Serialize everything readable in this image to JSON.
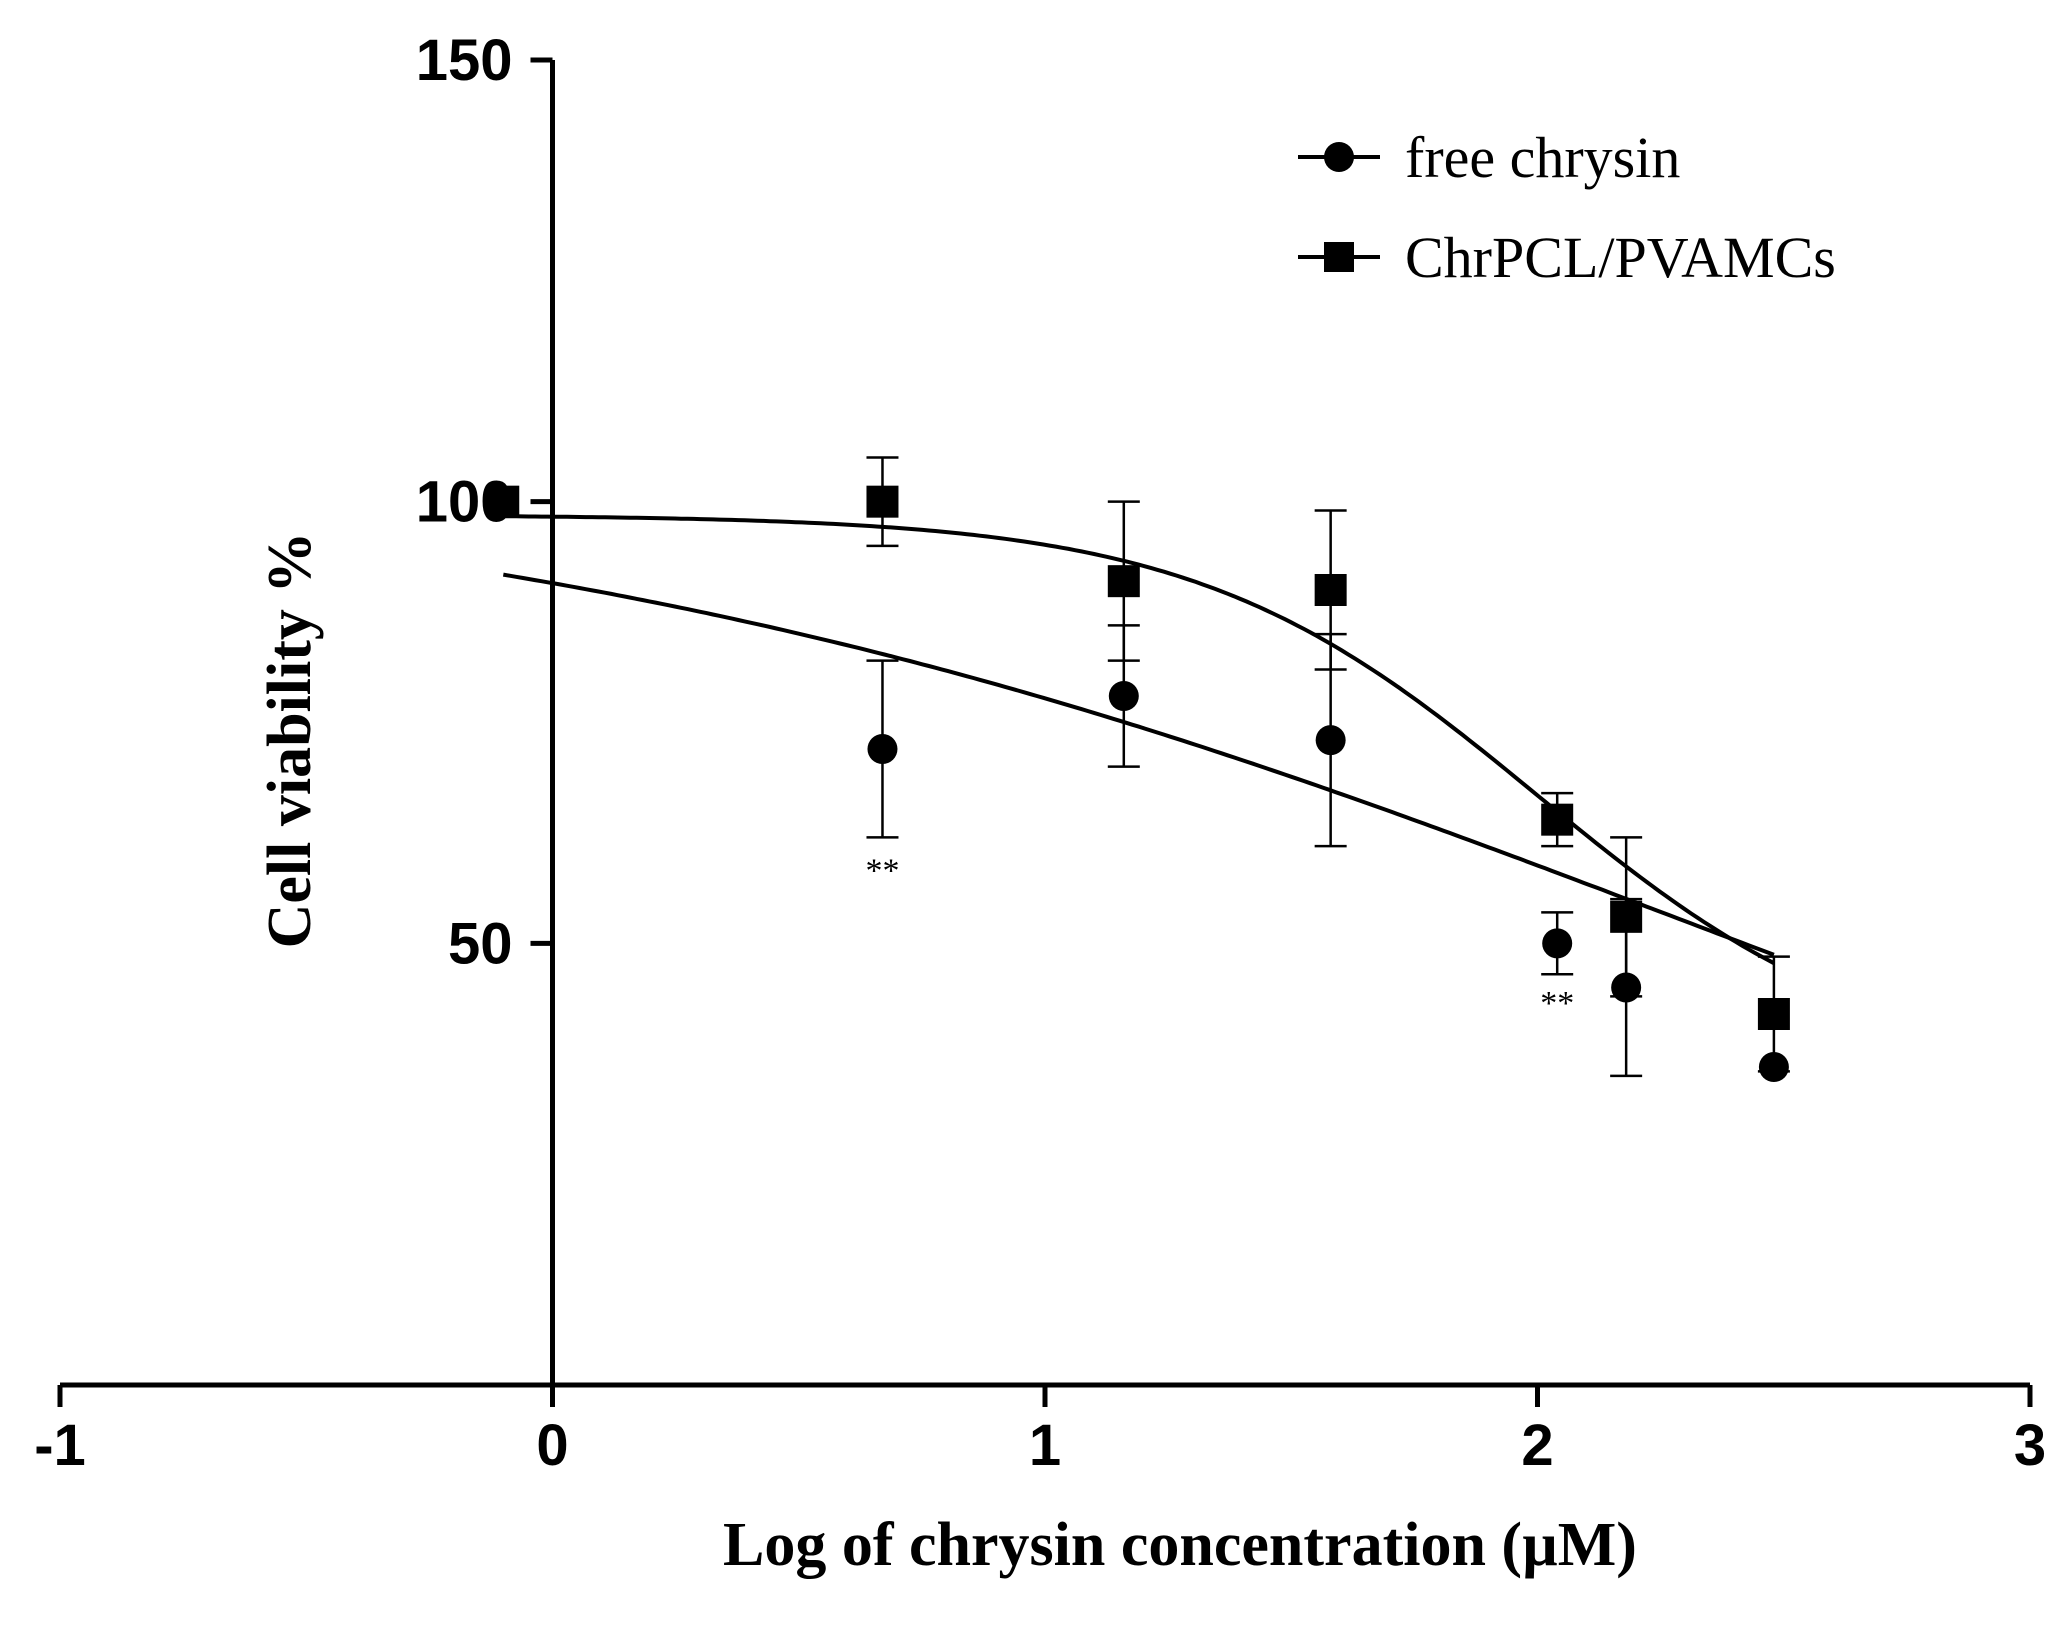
{
  "chart_data": {
    "type": "scatter",
    "title": "",
    "xlabel": "Log of chrysin concentration (µM)",
    "ylabel": "Cell viability %",
    "xlim": [
      -1,
      3
    ],
    "ylim": [
      0,
      150
    ],
    "x_ticks": [
      "-1",
      "0",
      "1",
      "2",
      "3"
    ],
    "y_ticks": [
      "50",
      "100",
      "150"
    ],
    "grid": false,
    "legend_position": "top-right",
    "series": [
      {
        "name": "free chrysin",
        "marker": "circle",
        "x": [
          -0.1,
          0.67,
          1.16,
          1.58,
          2.04,
          2.18,
          2.48
        ],
        "y": [
          100,
          72,
          78,
          73,
          50,
          45,
          36
        ],
        "err": [
          0,
          10,
          8,
          12,
          3.5,
          10,
          0
        ]
      },
      {
        "name": "ChrPCL/PVAMCs",
        "marker": "square",
        "x": [
          -0.1,
          0.67,
          1.16,
          1.58,
          2.04,
          2.18,
          2.48
        ],
        "y": [
          100,
          100,
          91,
          90,
          64,
          53,
          42
        ],
        "err": [
          0,
          5,
          9,
          9,
          3,
          9,
          6.5
        ]
      }
    ],
    "fit_curves": [
      {
        "series": "free chrysin",
        "top": 105,
        "bottom": 0,
        "log_ic50": 2.3,
        "hill": -0.35
      },
      {
        "series": "ChrPCL/PVAMCs",
        "top": 98.5,
        "bottom": 35,
        "log_ic50": 2.0,
        "hill": -1.25
      }
    ],
    "annotations": [
      {
        "text": "**",
        "x": 0.67,
        "y": 57
      },
      {
        "text": "**",
        "x": 2.04,
        "y": 42
      }
    ]
  }
}
